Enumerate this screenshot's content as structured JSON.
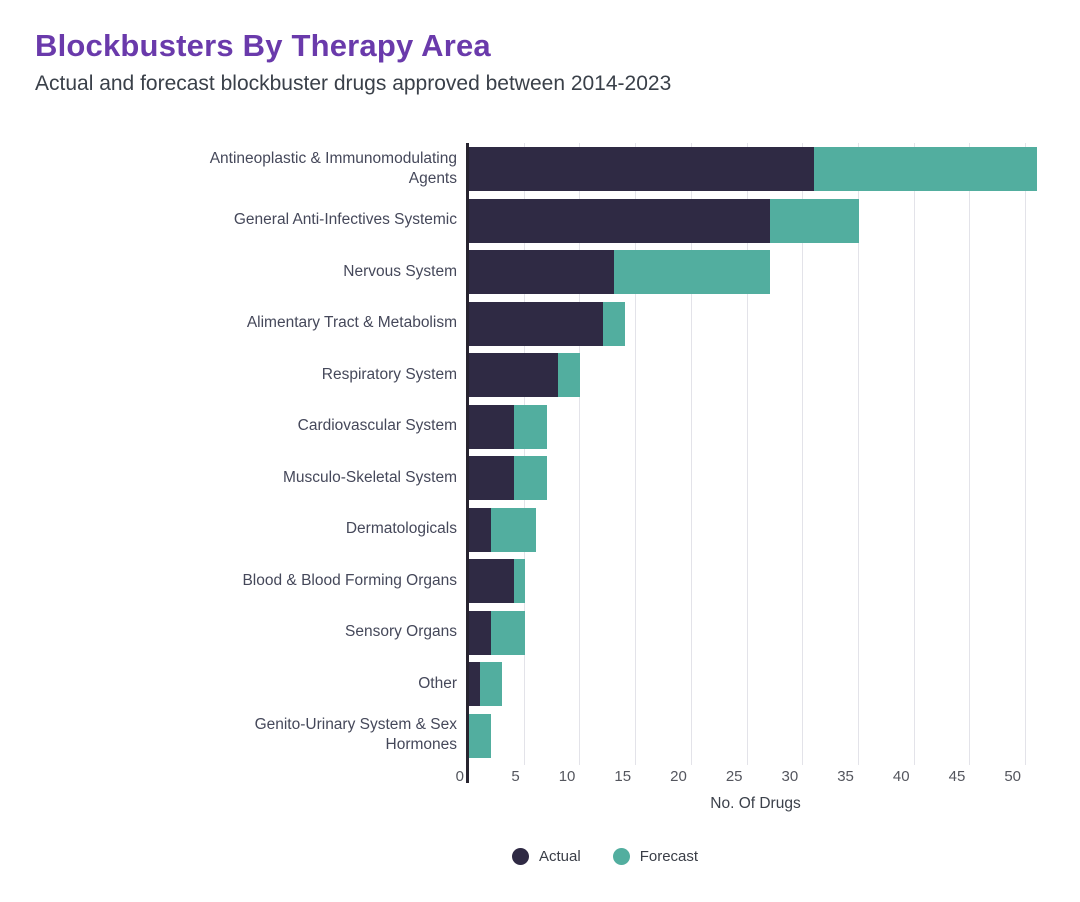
{
  "header": {
    "title": "Blockbusters By Therapy Area",
    "subtitle": "Actual and forecast blockbuster drugs approved between 2014-2023"
  },
  "axis": {
    "xlabel": "No. Of Drugs",
    "xticks": [
      0,
      5,
      10,
      15,
      20,
      25,
      30,
      35,
      40,
      45,
      50
    ]
  },
  "legend": [
    {
      "label": "Actual",
      "color": "#2f2a44"
    },
    {
      "label": "Forecast",
      "color": "#52ae9f"
    }
  ],
  "colors": {
    "actual": "#2f2a44",
    "forecast": "#52ae9f",
    "title": "#6a3aab",
    "gridline": "#e3e3e9",
    "axis_line": "#27242f"
  },
  "chart_data": {
    "type": "bar",
    "orientation": "horizontal",
    "stacked": true,
    "title": "Blockbusters By Therapy Area",
    "subtitle": "Actual and forecast blockbuster drugs approved between 2014-2023",
    "xlabel": "No. Of Drugs",
    "xlim": [
      0,
      51.6
    ],
    "xticks": [
      0,
      5,
      10,
      15,
      20,
      25,
      30,
      35,
      40,
      45,
      50
    ],
    "grid": "vertical",
    "legend_position": "bottom",
    "categories": [
      "Antineoplastic & Immunomodulating Agents",
      "General Anti-Infectives Systemic",
      "Nervous System",
      "Alimentary Tract & Metabolism",
      "Respiratory System",
      "Cardiovascular System",
      "Musculo-Skeletal System",
      "Dermatologicals",
      "Blood & Blood Forming Organs",
      "Sensory Organs",
      "Other",
      "Genito-Urinary System & Sex Hormones"
    ],
    "display_labels": [
      "Antineoplastic & Immunomodulating\nAgents",
      "General Anti-Infectives Systemic",
      "Nervous System",
      "Alimentary Tract & Metabolism",
      "Respiratory System",
      "Cardiovascular System",
      "Musculo-Skeletal System",
      "Dermatologicals",
      "Blood & Blood Forming Organs",
      "Sensory Organs",
      "Other",
      "Genito-Urinary System & Sex\nHormones"
    ],
    "series": [
      {
        "name": "Actual",
        "color": "#2f2a44",
        "values": [
          31,
          27,
          13,
          12,
          8,
          4,
          4,
          2,
          4,
          2,
          1,
          0
        ]
      },
      {
        "name": "Forecast",
        "color": "#52ae9f",
        "values": [
          20,
          8,
          14,
          2,
          2,
          3,
          3,
          4,
          1,
          3,
          2,
          2
        ]
      }
    ],
    "totals": [
      51,
      35,
      27,
      14,
      10,
      7,
      7,
      6,
      5,
      5,
      3,
      2
    ]
  }
}
